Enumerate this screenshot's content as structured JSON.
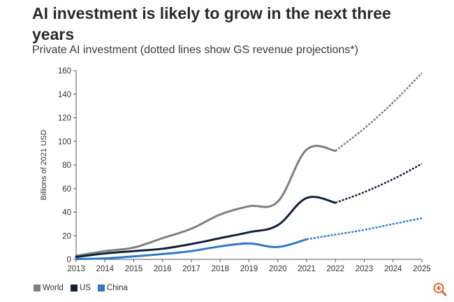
{
  "title": "AI investment is likely to grow in the next three years",
  "subtitle": "Private AI investment (dotted lines show GS revenue projections*)",
  "colors": {
    "world": "#7f7f7f",
    "us": "#0f2138",
    "china": "#2e79c7",
    "gridline": "#d9d9d9",
    "zoom": "#e8632b"
  },
  "chart_data": {
    "type": "line",
    "title": "AI investment is likely to grow in the next three years",
    "subtitle": "Private AI investment (dotted lines show GS revenue projections*)",
    "xlabel": "",
    "ylabel": "Billions of 2021 USD",
    "x": [
      2013,
      2014,
      2015,
      2016,
      2017,
      2018,
      2019,
      2020,
      2021,
      2022,
      2023,
      2024,
      2025
    ],
    "xlim": [
      2013,
      2025
    ],
    "ylim": [
      0,
      160
    ],
    "yticks": [
      0,
      20,
      40,
      60,
      80,
      100,
      120,
      140,
      160
    ],
    "grid": false,
    "legend_position": "bottom-left",
    "series": [
      {
        "name": "World",
        "color_key": "world",
        "actual_x": [
          2013,
          2014,
          2015,
          2016,
          2017,
          2018,
          2019,
          2020,
          2021,
          2022
        ],
        "actual": [
          3,
          7,
          10,
          18,
          26,
          38,
          45,
          49,
          93,
          92
        ],
        "projected_x": [
          2022,
          2023,
          2024,
          2025
        ],
        "projected": [
          92,
          111,
          133,
          158
        ]
      },
      {
        "name": "US",
        "color_key": "us",
        "actual_x": [
          2013,
          2014,
          2015,
          2016,
          2017,
          2018,
          2019,
          2020,
          2021,
          2022
        ],
        "actual": [
          2,
          5,
          7,
          9,
          13,
          18,
          23,
          29,
          52,
          48
        ],
        "projected_x": [
          2022,
          2023,
          2024,
          2025
        ],
        "projected": [
          48,
          57,
          68,
          81
        ]
      },
      {
        "name": "China",
        "color_key": "china",
        "actual_x": [
          2013,
          2014,
          2015,
          2016,
          2017,
          2018,
          2019,
          2020,
          2021
        ],
        "actual": [
          0.3,
          0.8,
          2.5,
          4.5,
          7,
          11,
          13.5,
          10.5,
          17
        ],
        "projected_x": [
          2021,
          2022,
          2023,
          2024,
          2025
        ],
        "projected": [
          17,
          21,
          25,
          30,
          35
        ]
      }
    ]
  },
  "legend": {
    "items": [
      {
        "label": "World"
      },
      {
        "label": "US"
      },
      {
        "label": "China"
      }
    ]
  },
  "zoom_icon": "zoom-in-icon"
}
